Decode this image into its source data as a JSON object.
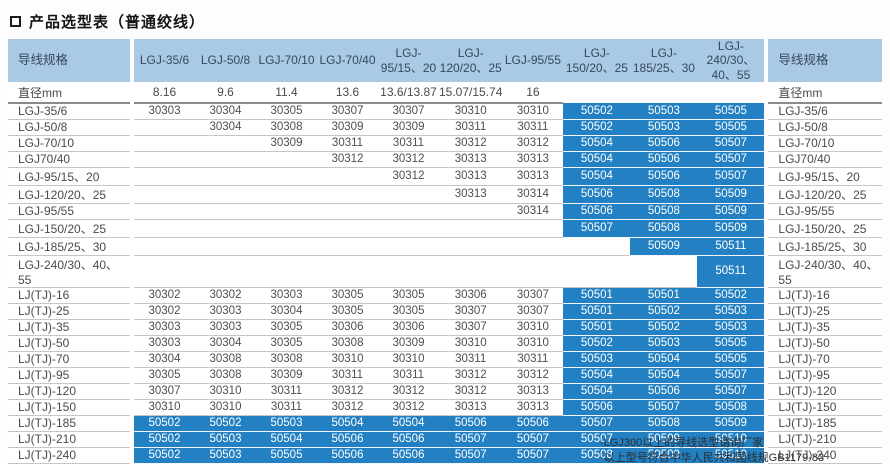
{
  "title": {
    "text": "产品选型表（普通绞线）"
  },
  "icons": {
    "title_bullet": "square-outline-icon"
  },
  "colors": {
    "header_blue": "#a9c9e4",
    "cell_blue": "#2380c2",
    "row_line": "#c6c6c6",
    "diameter_line": "#8b8b8b",
    "value_text": "#4f4f4f",
    "blue_cell_text": "#ffffff"
  },
  "table": {
    "corner_label": "导线规格",
    "diameter_label": "直径mm",
    "columns": [
      {
        "label": "LGJ-35/6",
        "diameter": "8.16",
        "type": "gray"
      },
      {
        "label": "LGJ-50/8",
        "diameter": "9.6",
        "type": "gray"
      },
      {
        "label": "LGJ-70/10",
        "diameter": "11.4",
        "type": "gray"
      },
      {
        "label": "LGJ-70/40",
        "diameter": "13.6",
        "type": "gray"
      },
      {
        "label": "LGJ-95/15、20",
        "diameter": "13.6/13.87",
        "type": "gray"
      },
      {
        "label": "LGJ-120/20、25",
        "diameter": "15.07/15.74",
        "type": "gray"
      },
      {
        "label": "LGJ-95/55",
        "diameter": "16",
        "type": "gray"
      },
      {
        "label": "LGJ-150/20、25",
        "diameter": "",
        "type": "blue"
      },
      {
        "label": "LGJ-185/25、30",
        "diameter": "",
        "type": "blue"
      },
      {
        "label": "LGJ-240/30、40、55",
        "diameter": "",
        "type": "blue"
      }
    ],
    "rows": [
      {
        "label": "LGJ-35/6",
        "cells": [
          "30303",
          "30304",
          "30305",
          "30307",
          "30307",
          "30310",
          "30310",
          "50502",
          "50503",
          "50505"
        ]
      },
      {
        "label": "LGJ-50/8",
        "cells": [
          "",
          "30304",
          "30308",
          "30309",
          "30309",
          "30311",
          "30311",
          "50502",
          "50503",
          "50505"
        ]
      },
      {
        "label": "LGJ-70/10",
        "cells": [
          "",
          "",
          "30309",
          "30311",
          "30311",
          "30312",
          "30312",
          "50504",
          "50506",
          "50507"
        ]
      },
      {
        "label": "LGJ70/40",
        "cells": [
          "",
          "",
          "",
          "30312",
          "30312",
          "30313",
          "30313",
          "50504",
          "50506",
          "50507"
        ]
      },
      {
        "label": "LGJ-95/15、20",
        "cells": [
          "",
          "",
          "",
          "",
          "30312",
          "30313",
          "30313",
          "50504",
          "50506",
          "50507"
        ]
      },
      {
        "label": "LGJ-120/20、25",
        "cells": [
          "",
          "",
          "",
          "",
          "",
          "30313",
          "30314",
          "50506",
          "50508",
          "50509"
        ]
      },
      {
        "label": "LGJ-95/55",
        "cells": [
          "",
          "",
          "",
          "",
          "",
          "",
          "30314",
          "50506",
          "50508",
          "50509"
        ]
      },
      {
        "label": "LGJ-150/20、25",
        "cells": [
          "",
          "",
          "",
          "",
          "",
          "",
          "",
          "50507",
          "50508",
          "50509"
        ]
      },
      {
        "label": "LGJ-185/25、30",
        "cells": [
          "",
          "",
          "",
          "",
          "",
          "",
          "",
          "",
          "50509",
          "50511"
        ]
      },
      {
        "label": "LGJ-240/30、40、55",
        "cells": [
          "",
          "",
          "",
          "",
          "",
          "",
          "",
          "",
          "",
          "50511"
        ]
      },
      {
        "label": "LJ(TJ)-16",
        "cells": [
          "30302",
          "30302",
          "30303",
          "30305",
          "30305",
          "30306",
          "30307",
          "50501",
          "50501",
          "50502"
        ]
      },
      {
        "label": "LJ(TJ)-25",
        "cells": [
          "30302",
          "30303",
          "30304",
          "30305",
          "30305",
          "30307",
          "30307",
          "50501",
          "50502",
          "50503"
        ]
      },
      {
        "label": "LJ(TJ)-35",
        "cells": [
          "30303",
          "30303",
          "30305",
          "30306",
          "30306",
          "30307",
          "30310",
          "50501",
          "50502",
          "50503"
        ]
      },
      {
        "label": "LJ(TJ)-50",
        "cells": [
          "30303",
          "30304",
          "30305",
          "30308",
          "30309",
          "30310",
          "30310",
          "50502",
          "50503",
          "50505"
        ]
      },
      {
        "label": "LJ(TJ)-70",
        "cells": [
          "30304",
          "30308",
          "30308",
          "30310",
          "30310",
          "30311",
          "30311",
          "50503",
          "50504",
          "50505"
        ]
      },
      {
        "label": "LJ(TJ)-95",
        "cells": [
          "30305",
          "30308",
          "30309",
          "30311",
          "30311",
          "30312",
          "30312",
          "50504",
          "50504",
          "50507"
        ]
      },
      {
        "label": "LJ(TJ)-120",
        "cells": [
          "30307",
          "30310",
          "30311",
          "30312",
          "30312",
          "30312",
          "30313",
          "50504",
          "50506",
          "50507"
        ]
      },
      {
        "label": "LJ(TJ)-150",
        "cells": [
          "30310",
          "30310",
          "30311",
          "30312",
          "30312",
          "30313",
          "30313",
          "50506",
          "50507",
          "50508"
        ]
      },
      {
        "label": "LJ(TJ)-185",
        "cells": [
          "50502",
          "50502",
          "50503",
          "50504",
          "50504",
          "50506",
          "50506",
          "50507",
          "50508",
          "50509"
        ],
        "all_blue": true
      },
      {
        "label": "LJ(TJ)-210",
        "cells": [
          "50502",
          "50503",
          "50504",
          "50506",
          "50506",
          "50507",
          "50507",
          "50507",
          "50509",
          "50510"
        ],
        "all_blue": true
      },
      {
        "label": "LJ(TJ)-240",
        "cells": [
          "50502",
          "50503",
          "50505",
          "50506",
          "50506",
          "50507",
          "50507",
          "50508",
          "50509",
          "50510"
        ],
        "all_blue": true
      }
    ]
  },
  "footnotes": [
    "·LGJ300以上的导线选型请询厂家",
    "·以上型号符合中华人民共和国线规GB1179-83"
  ]
}
